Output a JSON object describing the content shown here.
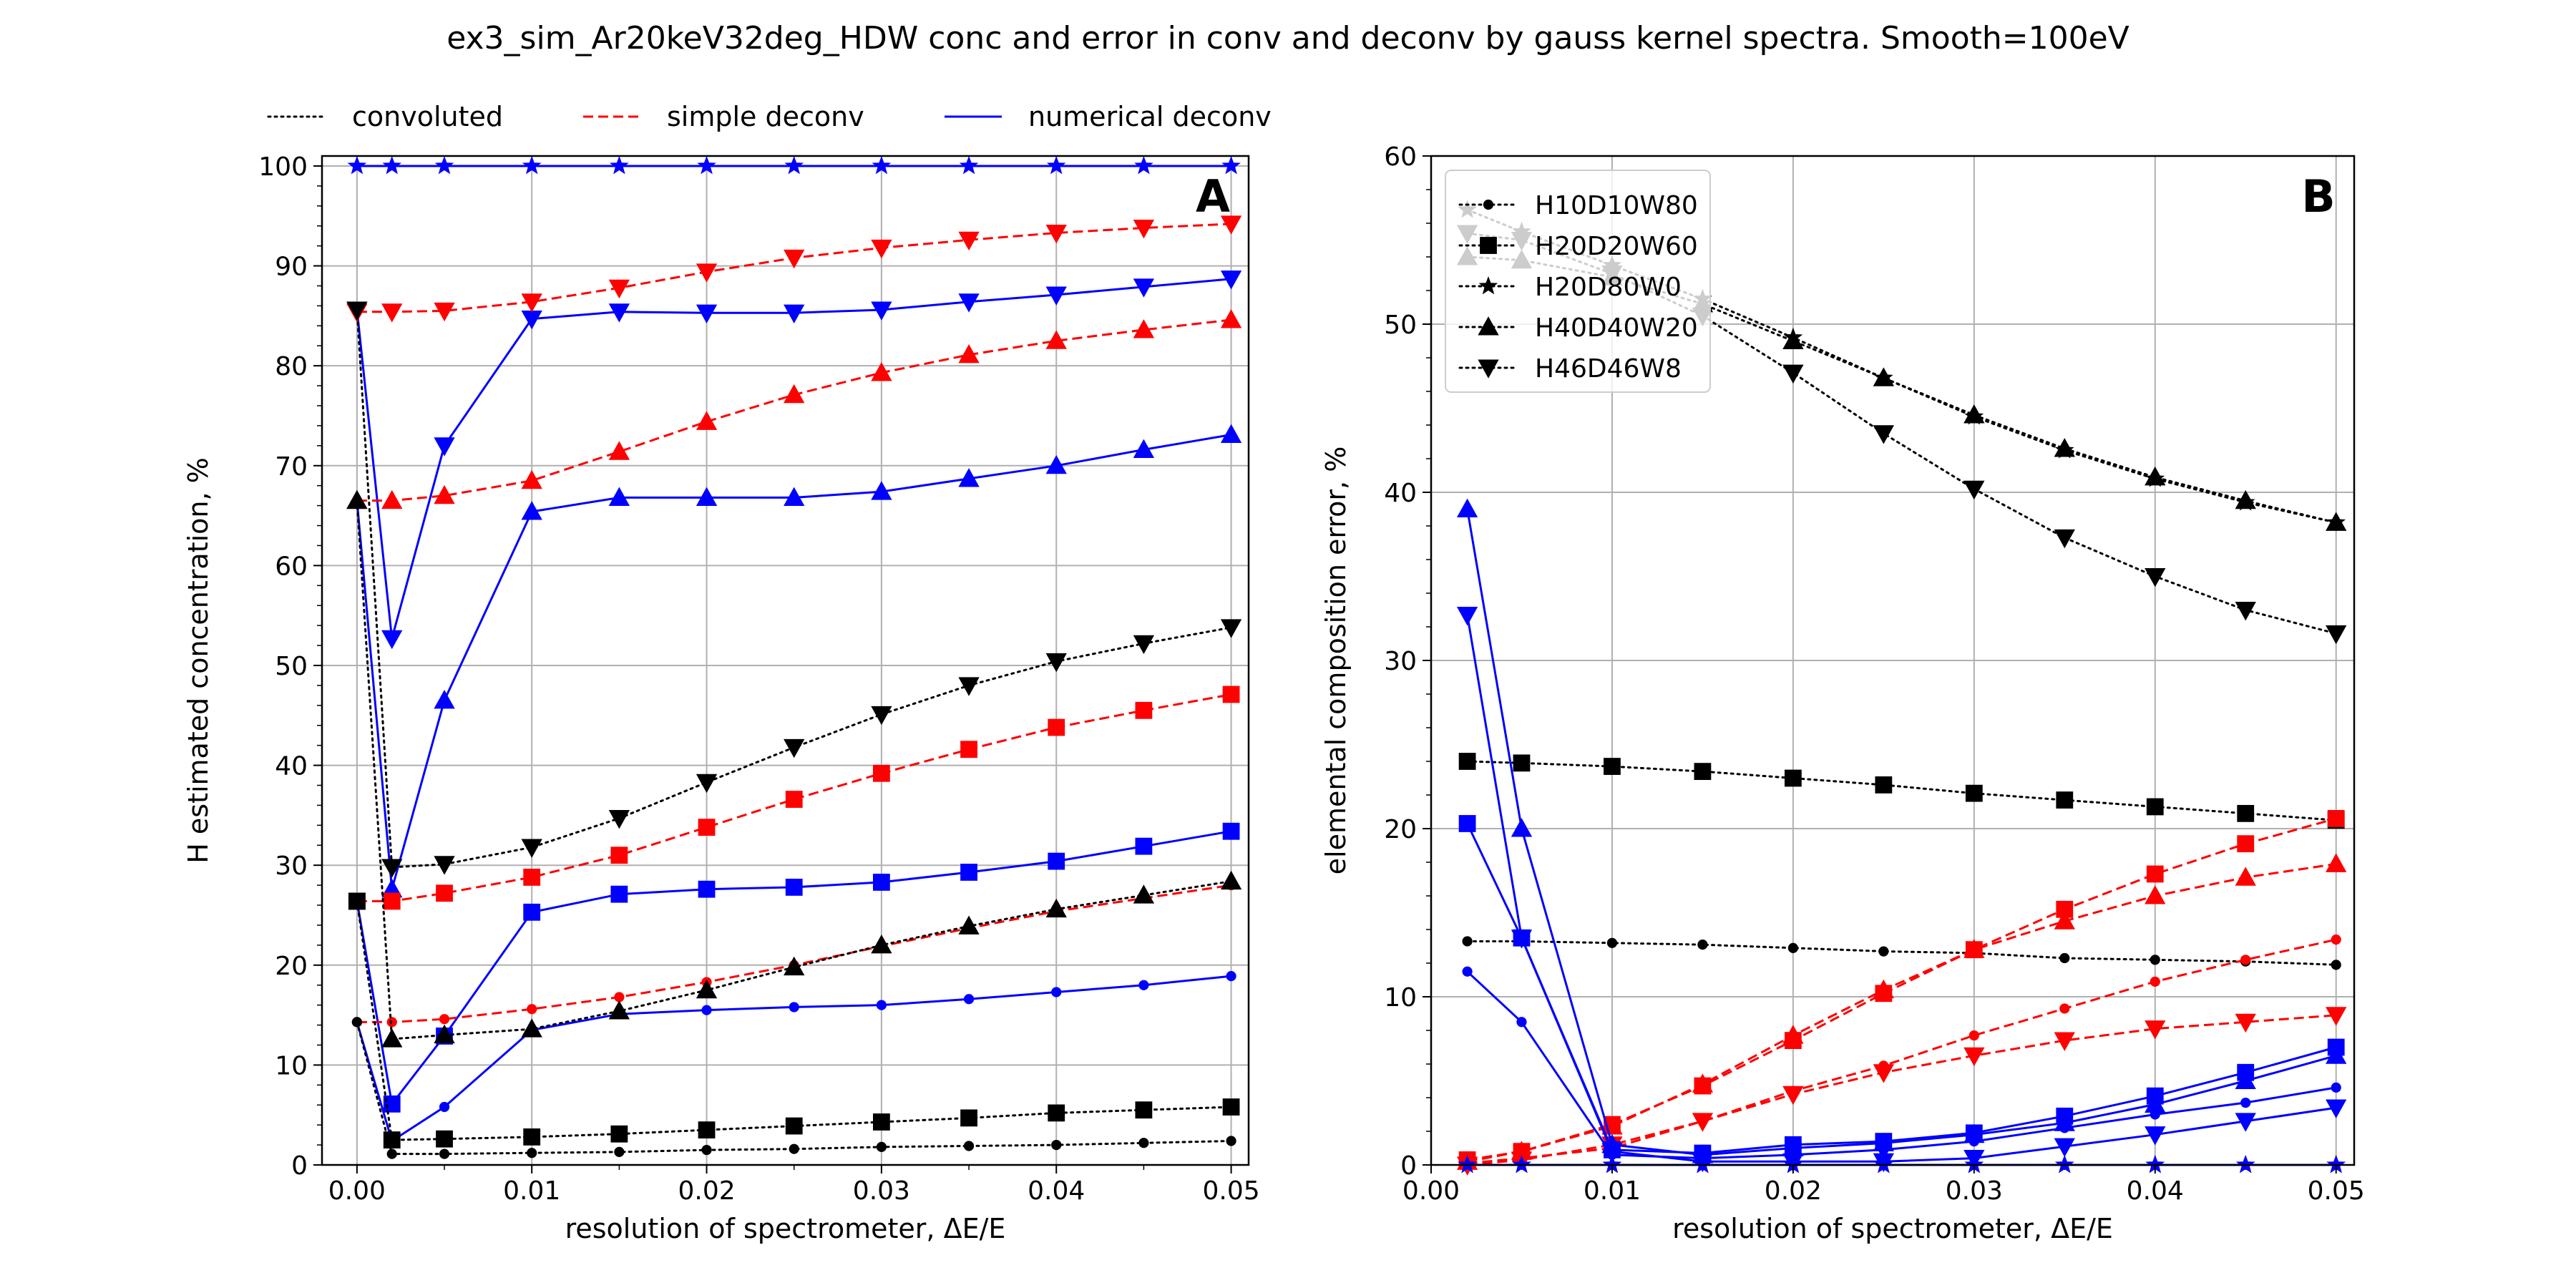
{
  "figure": {
    "title": "ex3_sim_Ar20keV32deg_HDW conc and error in conv and deconv by gauss kernel spectra. Smooth=100eV"
  },
  "colors": {
    "convoluted": "#000000",
    "simple": "#ff0000",
    "numerical": "#0000ff",
    "grid": "#b0b0b0",
    "legend_edge": "#cccccc"
  },
  "legend_A": {
    "placement": "above-plot-A",
    "entries": [
      {
        "key": "convoluted",
        "label": "convoluted",
        "dash": "dotted"
      },
      {
        "key": "simple",
        "label": "simple deconv",
        "dash": "dashed"
      },
      {
        "key": "numerical",
        "label": "numerical deconv",
        "dash": "solid"
      }
    ]
  },
  "chart_data": [
    {
      "type": "line",
      "panel_label": "A",
      "xlabel": "resolution of spectrometer, ΔE/E",
      "ylabel": "H estimated concentration, %",
      "xlim": [
        -0.002,
        0.051
      ],
      "ylim": [
        0,
        101
      ],
      "xticks": [
        0.0,
        0.01,
        0.02,
        0.03,
        0.04,
        0.05
      ],
      "xtick_labels": [
        "0.00",
        "0.01",
        "0.02",
        "0.03",
        "0.04",
        "0.05"
      ],
      "yticks": [
        0,
        10,
        20,
        30,
        40,
        50,
        60,
        70,
        80,
        90,
        100
      ],
      "ytick_labels": [
        "0",
        "10",
        "20",
        "30",
        "40",
        "50",
        "60",
        "70",
        "80",
        "90",
        "100"
      ],
      "grid": true,
      "series": [
        {
          "method": "numerical",
          "marker": "dot",
          "x": [
            0,
            0.002,
            0.005,
            0.01,
            0.015,
            0.02,
            0.025,
            0.03,
            0.035,
            0.04,
            0.045,
            0.05
          ],
          "y": [
            14.3,
            2.4,
            5.8,
            13.5,
            15.1,
            15.5,
            15.8,
            16.0,
            16.6,
            17.3,
            18.0,
            18.9
          ]
        },
        {
          "method": "numerical",
          "marker": "square",
          "x": [
            0,
            0.002,
            0.005,
            0.01,
            0.015,
            0.02,
            0.025,
            0.03,
            0.035,
            0.04,
            0.045,
            0.05
          ],
          "y": [
            26.4,
            6.1,
            12.9,
            25.3,
            27.1,
            27.6,
            27.8,
            28.3,
            29.3,
            30.4,
            31.9,
            33.4
          ]
        },
        {
          "method": "numerical",
          "marker": "star",
          "x": [
            0,
            0.002,
            0.005,
            0.01,
            0.015,
            0.02,
            0.025,
            0.03,
            0.035,
            0.04,
            0.045,
            0.05
          ],
          "y": [
            100,
            100,
            100,
            100,
            100,
            100,
            100,
            100,
            100,
            100,
            100,
            100
          ]
        },
        {
          "method": "numerical",
          "marker": "triangle-up",
          "x": [
            0,
            0.002,
            0.005,
            0.01,
            0.015,
            0.02,
            0.025,
            0.03,
            0.035,
            0.04,
            0.045,
            0.05
          ],
          "y": [
            66.5,
            27.6,
            46.5,
            65.4,
            66.8,
            66.8,
            66.8,
            67.4,
            68.7,
            70.0,
            71.6,
            73.1
          ]
        },
        {
          "method": "numerical",
          "marker": "triangle-down",
          "x": [
            0,
            0.002,
            0.005,
            0.01,
            0.015,
            0.02,
            0.025,
            0.03,
            0.035,
            0.04,
            0.045,
            0.05
          ],
          "y": [
            85.6,
            52.7,
            72.0,
            84.7,
            85.4,
            85.3,
            85.3,
            85.6,
            86.4,
            87.1,
            87.9,
            88.7
          ]
        },
        {
          "method": "simple",
          "marker": "dot",
          "x": [
            0,
            0.002,
            0.005,
            0.01,
            0.015,
            0.02,
            0.025,
            0.03,
            0.035,
            0.04,
            0.045,
            0.05
          ],
          "y": [
            14.3,
            14.3,
            14.6,
            15.6,
            16.8,
            18.3,
            20.0,
            21.9,
            23.7,
            25.4,
            26.7,
            28.0
          ]
        },
        {
          "method": "simple",
          "marker": "square",
          "x": [
            0,
            0.002,
            0.005,
            0.01,
            0.015,
            0.02,
            0.025,
            0.03,
            0.035,
            0.04,
            0.045,
            0.05
          ],
          "y": [
            26.4,
            26.4,
            27.2,
            28.8,
            31.0,
            33.8,
            36.6,
            39.2,
            41.6,
            43.8,
            45.5,
            47.1
          ]
        },
        {
          "method": "simple",
          "marker": "triangle-up",
          "x": [
            0,
            0.002,
            0.005,
            0.01,
            0.015,
            0.02,
            0.025,
            0.03,
            0.035,
            0.04,
            0.045,
            0.05
          ],
          "y": [
            66.5,
            66.5,
            67.0,
            68.5,
            71.4,
            74.4,
            77.1,
            79.3,
            81.1,
            82.5,
            83.6,
            84.6
          ]
        },
        {
          "method": "simple",
          "marker": "triangle-down",
          "x": [
            0,
            0.002,
            0.005,
            0.01,
            0.015,
            0.02,
            0.025,
            0.03,
            0.035,
            0.04,
            0.045,
            0.05
          ],
          "y": [
            85.4,
            85.4,
            85.5,
            86.4,
            87.8,
            89.4,
            90.8,
            91.8,
            92.6,
            93.3,
            93.8,
            94.2
          ]
        },
        {
          "method": "convoluted",
          "marker": "dot",
          "x": [
            0,
            0.002,
            0.005,
            0.01,
            0.015,
            0.02,
            0.025,
            0.03,
            0.035,
            0.04,
            0.045,
            0.05
          ],
          "y": [
            14.3,
            1.1,
            1.1,
            1.2,
            1.3,
            1.5,
            1.6,
            1.8,
            1.9,
            2.0,
            2.2,
            2.4
          ]
        },
        {
          "method": "convoluted",
          "marker": "square",
          "x": [
            0,
            0.002,
            0.005,
            0.01,
            0.015,
            0.02,
            0.025,
            0.03,
            0.035,
            0.04,
            0.045,
            0.05
          ],
          "y": [
            26.4,
            2.5,
            2.6,
            2.8,
            3.1,
            3.5,
            3.9,
            4.3,
            4.7,
            5.2,
            5.5,
            5.8
          ]
        },
        {
          "method": "convoluted",
          "marker": "triangle-up",
          "x": [
            0,
            0.002,
            0.005,
            0.01,
            0.015,
            0.02,
            0.025,
            0.03,
            0.035,
            0.04,
            0.045,
            0.05
          ],
          "y": [
            66.5,
            12.6,
            13.0,
            13.6,
            15.4,
            17.5,
            19.8,
            22.0,
            23.9,
            25.6,
            27.0,
            28.4
          ]
        },
        {
          "method": "convoluted",
          "marker": "triangle-down",
          "x": [
            0,
            0.002,
            0.005,
            0.01,
            0.015,
            0.02,
            0.025,
            0.03,
            0.035,
            0.04,
            0.045,
            0.05
          ],
          "y": [
            85.6,
            29.8,
            30.1,
            31.8,
            34.7,
            38.3,
            41.8,
            45.1,
            48.0,
            50.4,
            52.2,
            53.8
          ]
        }
      ]
    },
    {
      "type": "line",
      "panel_label": "B",
      "xlabel": "resolution of spectrometer, ΔE/E",
      "ylabel": "elemental composition error, %",
      "xlim": [
        0.0,
        0.051
      ],
      "ylim": [
        0,
        60
      ],
      "xticks": [
        0.0,
        0.01,
        0.02,
        0.03,
        0.04,
        0.05
      ],
      "xtick_labels": [
        "0.00",
        "0.01",
        "0.02",
        "0.03",
        "0.04",
        "0.05"
      ],
      "yticks": [
        0,
        10,
        20,
        30,
        40,
        50,
        60
      ],
      "ytick_labels": [
        "0",
        "10",
        "20",
        "30",
        "40",
        "50",
        "60"
      ],
      "grid": true,
      "legend": {
        "placement": "upper-left",
        "entries": [
          {
            "label": "H10D10W80",
            "marker": "dot"
          },
          {
            "label": "H20D20W60",
            "marker": "square"
          },
          {
            "label": "H20D80W0",
            "marker": "star"
          },
          {
            "label": "H40D40W20",
            "marker": "triangle-up"
          },
          {
            "label": "H46D46W8",
            "marker": "triangle-down"
          }
        ]
      },
      "series": [
        {
          "method": "convoluted",
          "marker": "dot",
          "x": [
            0.002,
            0.005,
            0.01,
            0.015,
            0.02,
            0.025,
            0.03,
            0.035,
            0.04,
            0.045,
            0.05
          ],
          "y": [
            13.3,
            13.3,
            13.2,
            13.1,
            12.9,
            12.7,
            12.6,
            12.3,
            12.2,
            12.1,
            11.9
          ]
        },
        {
          "method": "convoluted",
          "marker": "square",
          "x": [
            0.002,
            0.005,
            0.01,
            0.015,
            0.02,
            0.025,
            0.03,
            0.035,
            0.04,
            0.045,
            0.05
          ],
          "y": [
            24.0,
            23.9,
            23.7,
            23.4,
            23.0,
            22.6,
            22.1,
            21.7,
            21.3,
            20.9,
            20.5
          ]
        },
        {
          "method": "convoluted",
          "marker": "star",
          "x": [
            0.002,
            0.005,
            0.01,
            0.015,
            0.02,
            0.025,
            0.03,
            0.035,
            0.04,
            0.045,
            0.05
          ],
          "y": [
            56.8,
            55.5,
            53.5,
            51.5,
            49.2,
            46.8,
            44.5,
            42.5,
            40.8,
            39.4,
            38.2
          ]
        },
        {
          "method": "convoluted",
          "marker": "triangle-up",
          "x": [
            0.002,
            0.005,
            0.01,
            0.015,
            0.02,
            0.025,
            0.03,
            0.035,
            0.04,
            0.045,
            0.05
          ],
          "y": [
            54.0,
            53.8,
            52.8,
            51.2,
            49.0,
            46.8,
            44.6,
            42.6,
            40.9,
            39.5,
            38.2
          ]
        },
        {
          "method": "convoluted",
          "marker": "triangle-down",
          "x": [
            0.002,
            0.005,
            0.01,
            0.015,
            0.02,
            0.025,
            0.03,
            0.035,
            0.04,
            0.045,
            0.05
          ],
          "y": [
            55.4,
            55.0,
            53.0,
            50.5,
            47.1,
            43.5,
            40.2,
            37.3,
            35.0,
            33.0,
            31.6
          ]
        },
        {
          "method": "simple",
          "marker": "dot",
          "x": [
            0.002,
            0.005,
            0.01,
            0.015,
            0.02,
            0.025,
            0.03,
            0.035,
            0.04,
            0.045,
            0.05
          ],
          "y": [
            0.1,
            0.4,
            1.0,
            2.6,
            4.4,
            5.9,
            7.7,
            9.3,
            10.9,
            12.2,
            13.4
          ]
        },
        {
          "method": "simple",
          "marker": "square",
          "x": [
            0.002,
            0.005,
            0.01,
            0.015,
            0.02,
            0.025,
            0.03,
            0.035,
            0.04,
            0.045,
            0.05
          ],
          "y": [
            0.3,
            0.8,
            2.4,
            4.7,
            7.4,
            10.2,
            12.8,
            15.2,
            17.3,
            19.1,
            20.6
          ]
        },
        {
          "method": "simple",
          "marker": "star",
          "x": [
            0.002,
            0.005,
            0.01,
            0.015,
            0.02,
            0.025,
            0.03,
            0.035,
            0.04,
            0.045,
            0.05
          ],
          "y": [
            0,
            0,
            0,
            0,
            0,
            0,
            0,
            0,
            0,
            0,
            0
          ]
        },
        {
          "method": "simple",
          "marker": "triangle-up",
          "x": [
            0.002,
            0.005,
            0.01,
            0.015,
            0.02,
            0.025,
            0.03,
            0.035,
            0.04,
            0.045,
            0.05
          ],
          "y": [
            0.2,
            0.8,
            2.3,
            4.8,
            7.7,
            10.4,
            12.8,
            14.5,
            16.0,
            17.1,
            17.9
          ]
        },
        {
          "method": "simple",
          "marker": "triangle-down",
          "x": [
            0.002,
            0.005,
            0.01,
            0.015,
            0.02,
            0.025,
            0.03,
            0.035,
            0.04,
            0.045,
            0.05
          ],
          "y": [
            0.0,
            0.3,
            1.2,
            2.6,
            4.2,
            5.5,
            6.5,
            7.4,
            8.1,
            8.5,
            8.9
          ]
        },
        {
          "method": "numerical",
          "marker": "dot",
          "x": [
            0.002,
            0.005,
            0.01,
            0.015,
            0.02,
            0.025,
            0.03,
            0.035,
            0.04,
            0.045,
            0.05
          ],
          "y": [
            11.5,
            8.5,
            0.6,
            0.4,
            0.6,
            0.9,
            1.4,
            2.2,
            3.0,
            3.7,
            4.6
          ]
        },
        {
          "method": "numerical",
          "marker": "square",
          "x": [
            0.002,
            0.005,
            0.01,
            0.015,
            0.02,
            0.025,
            0.03,
            0.035,
            0.04,
            0.045,
            0.05
          ],
          "y": [
            20.3,
            13.5,
            0.9,
            0.7,
            1.2,
            1.4,
            1.9,
            2.9,
            4.1,
            5.5,
            7.0
          ]
        },
        {
          "method": "numerical",
          "marker": "star",
          "x": [
            0.002,
            0.005,
            0.01,
            0.015,
            0.02,
            0.025,
            0.03,
            0.035,
            0.04,
            0.045,
            0.05
          ],
          "y": [
            0,
            0,
            0,
            0,
            0,
            0,
            0,
            0,
            0,
            0,
            0
          ]
        },
        {
          "method": "numerical",
          "marker": "triangle-up",
          "x": [
            0.002,
            0.005,
            0.01,
            0.015,
            0.02,
            0.025,
            0.03,
            0.035,
            0.04,
            0.045,
            0.05
          ],
          "y": [
            39.0,
            20.0,
            1.2,
            0.6,
            1.0,
            1.3,
            1.8,
            2.5,
            3.6,
            5.0,
            6.5
          ]
        },
        {
          "method": "numerical",
          "marker": "triangle-down",
          "x": [
            0.002,
            0.005,
            0.01,
            0.015,
            0.02,
            0.025,
            0.03,
            0.035,
            0.04,
            0.045,
            0.05
          ],
          "y": [
            32.7,
            13.5,
            0.8,
            0.2,
            0.2,
            0.2,
            0.4,
            1.1,
            1.8,
            2.6,
            3.4
          ]
        }
      ]
    }
  ]
}
